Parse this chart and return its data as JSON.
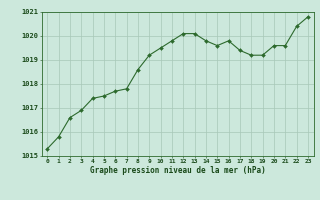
{
  "x": [
    0,
    1,
    2,
    3,
    4,
    5,
    6,
    7,
    8,
    9,
    10,
    11,
    12,
    13,
    14,
    15,
    16,
    17,
    18,
    19,
    20,
    21,
    22,
    23
  ],
  "y": [
    1015.3,
    1015.8,
    1016.6,
    1016.9,
    1017.4,
    1017.5,
    1017.7,
    1017.8,
    1018.6,
    1019.2,
    1019.5,
    1019.8,
    1020.1,
    1020.1,
    1019.8,
    1019.6,
    1019.8,
    1019.4,
    1019.2,
    1019.2,
    1019.6,
    1019.6,
    1020.4,
    1020.8
  ],
  "ylim": [
    1015,
    1021
  ],
  "yticks": [
    1015,
    1016,
    1017,
    1018,
    1019,
    1020,
    1021
  ],
  "xticks": [
    0,
    1,
    2,
    3,
    4,
    5,
    6,
    7,
    8,
    9,
    10,
    11,
    12,
    13,
    14,
    15,
    16,
    17,
    18,
    19,
    20,
    21,
    22,
    23
  ],
  "line_color": "#2d6a2d",
  "marker_color": "#2d6a2d",
  "bg_color": "#cce8dc",
  "grid_color": "#a8c8b8",
  "xlabel": "Graphe pression niveau de la mer (hPa)",
  "xlabel_color": "#1a4a1a",
  "tick_color": "#1a4a1a",
  "axis_color": "#2d6a2d"
}
